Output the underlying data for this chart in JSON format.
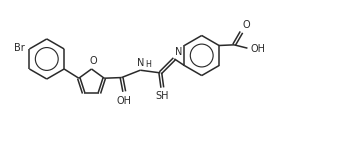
{
  "background_color": "#ffffff",
  "line_color": "#2a2a2a",
  "fig_width": 3.62,
  "fig_height": 1.46,
  "dpi": 100,
  "xlim": [
    0,
    10.8
  ],
  "ylim": [
    0,
    4.0
  ]
}
